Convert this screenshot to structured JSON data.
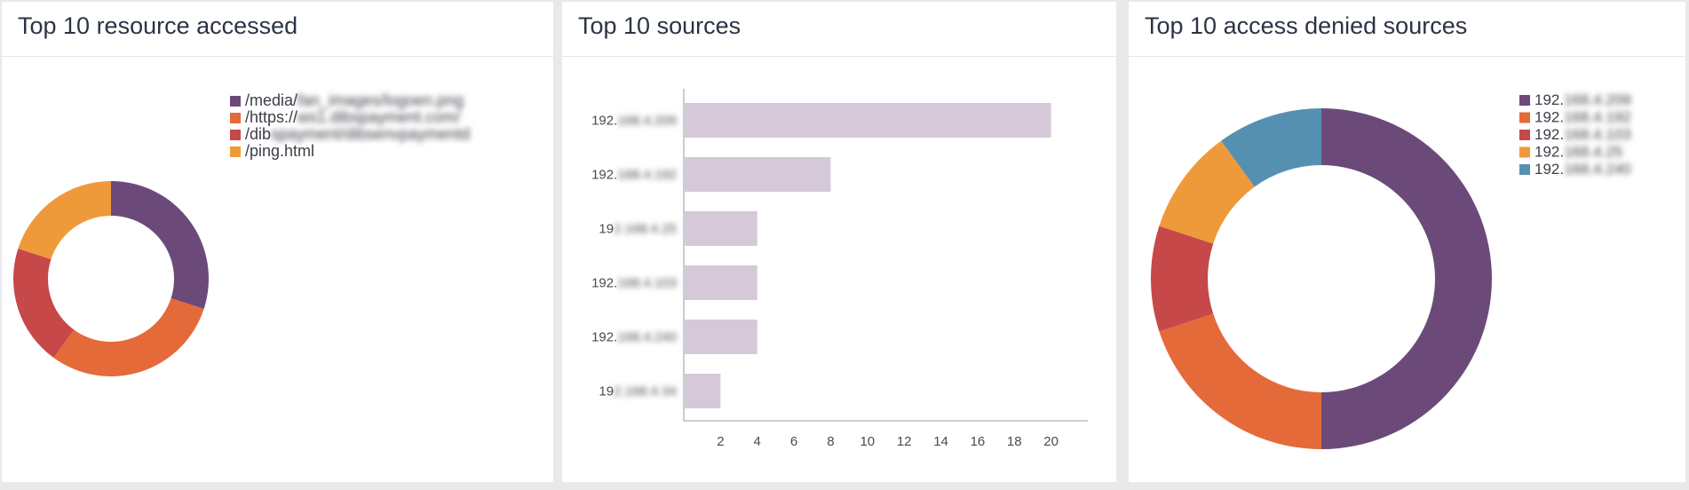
{
  "panels": [
    {
      "title": "Top 10 resource accessed"
    },
    {
      "title": "Top 10 sources"
    },
    {
      "title": "Top 10 access denied sources"
    }
  ],
  "chart_data": [
    {
      "type": "pie",
      "subtype": "donut",
      "title": "Top 10 resource accessed",
      "legend_position": "top-right",
      "slices": [
        {
          "label_visible": "/media/",
          "label_hidden": "fan_images/logoen.png",
          "value": 3,
          "color": "#6b4a7a"
        },
        {
          "label_visible": "/https://",
          "label_hidden": "ws1.dibspayment.com/",
          "value": 3,
          "color": "#e56a3a"
        },
        {
          "label_visible": "/dib",
          "label_hidden": "spayment/dibsenvpaymentd",
          "value": 2,
          "color": "#c64848"
        },
        {
          "label_visible": "/ping.html",
          "label_hidden": "",
          "value": 2,
          "color": "#ef9a3a"
        }
      ]
    },
    {
      "type": "bar",
      "orientation": "horizontal",
      "title": "Top 10 sources",
      "bar_color": "#d5c9d9",
      "categories": [
        {
          "visible": "192.",
          "hidden": "168.4.209"
        },
        {
          "visible": "192.",
          "hidden": "168.4.192"
        },
        {
          "visible": "19",
          "hidden": "2.168.4.25"
        },
        {
          "visible": "192.",
          "hidden": "168.4.103"
        },
        {
          "visible": "192.",
          "hidden": "168.4.240"
        },
        {
          "visible": "19",
          "hidden": "2.168.4.34"
        }
      ],
      "values": [
        20,
        8,
        4,
        4,
        4,
        2
      ],
      "xlim": [
        0,
        22
      ],
      "xticks": [
        2,
        4,
        6,
        8,
        10,
        12,
        14,
        16,
        18,
        20
      ],
      "grid": false
    },
    {
      "type": "pie",
      "subtype": "donut",
      "title": "Top 10 access denied sources",
      "legend_position": "top-right",
      "slices": [
        {
          "label_visible": "192.",
          "label_hidden": "168.4.209",
          "value": 10,
          "color": "#6b4a7a"
        },
        {
          "label_visible": "192.",
          "label_hidden": "168.4.192",
          "value": 4,
          "color": "#e56a3a"
        },
        {
          "label_visible": "192.",
          "label_hidden": "168.4.103",
          "value": 2,
          "color": "#c64848"
        },
        {
          "label_visible": "192.",
          "label_hidden": "168.4.25",
          "value": 2,
          "color": "#ef9a3a"
        },
        {
          "label_visible": "192.",
          "label_hidden": "168.4.240",
          "value": 2,
          "color": "#5690b0"
        }
      ]
    }
  ]
}
